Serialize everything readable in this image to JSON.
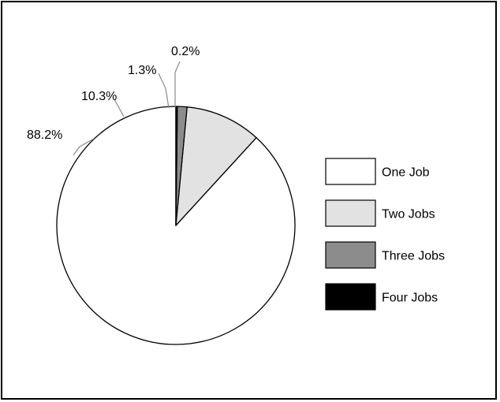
{
  "chart_data": {
    "type": "pie",
    "title": "",
    "legend_position": "right",
    "slices": [
      {
        "name": "One Job",
        "value": 88.2,
        "label": "88.2%",
        "color": "#ffffff"
      },
      {
        "name": "Two Jobs",
        "value": 10.3,
        "label": "10.3%",
        "color": "#e2e2e2"
      },
      {
        "name": "Three Jobs",
        "value": 1.3,
        "label": "1.3%",
        "color": "#8c8c8c"
      },
      {
        "name": "Four Jobs",
        "value": 0.2,
        "label": "0.2%",
        "color": "#000000"
      }
    ]
  }
}
